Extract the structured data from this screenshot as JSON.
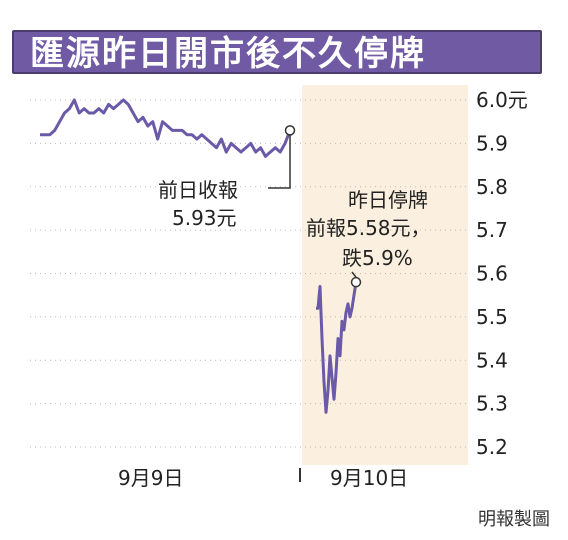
{
  "title": "匯源昨日開市後不久停牌",
  "credit": "明報製圖",
  "annotations": {
    "prev_close_line1": "前日收報",
    "prev_close_line2": "5.93元",
    "halt_line1": "昨日停牌",
    "halt_line2": "前報5.58元，",
    "halt_line3": "跌5.9%"
  },
  "colors": {
    "title_bg": "#6f5aa3",
    "line": "#6b5aa8",
    "highlight_bg": "#fbf0df",
    "grid": "#bbbbbb"
  },
  "chart_data": {
    "type": "line",
    "title": "匯源昨日開市後不久停牌",
    "xlabel": "",
    "ylabel": "",
    "ylim": [
      5.2,
      6.0
    ],
    "y_ticks": [
      6.0,
      5.9,
      5.8,
      5.7,
      5.6,
      5.5,
      5.4,
      5.3,
      5.2
    ],
    "y_tick_labels": [
      "6.0元",
      "5.9",
      "5.8",
      "5.7",
      "5.6",
      "5.5",
      "5.4",
      "5.3",
      "5.2"
    ],
    "grid": true,
    "x_tick_labels": [
      "9月9日",
      "9月10日"
    ],
    "series": [
      {
        "day": "9月9日",
        "values": [
          5.92,
          5.92,
          5.92,
          5.93,
          5.95,
          5.97,
          5.98,
          6.0,
          5.97,
          5.98,
          5.97,
          5.97,
          5.98,
          5.97,
          5.99,
          5.98,
          5.99,
          6.0,
          5.99,
          5.97,
          5.95,
          5.96,
          5.94,
          5.95,
          5.91,
          5.95,
          5.94,
          5.93,
          5.93,
          5.93,
          5.92,
          5.92,
          5.91,
          5.92,
          5.91,
          5.9,
          5.89,
          5.91,
          5.88,
          5.9,
          5.89,
          5.88,
          5.89,
          5.9,
          5.88,
          5.89,
          5.87,
          5.88,
          5.89,
          5.88,
          5.9,
          5.93
        ]
      },
      {
        "day": "9月10日",
        "values": [
          5.52,
          5.52,
          5.57,
          5.45,
          5.35,
          5.28,
          5.33,
          5.41,
          5.36,
          5.31,
          5.37,
          5.45,
          5.41,
          5.49,
          5.47,
          5.51,
          5.53,
          5.5,
          5.52,
          5.55,
          5.58
        ]
      }
    ],
    "markers": [
      {
        "day": "9月9日",
        "value": 5.93,
        "label": "前日收報 5.93元"
      },
      {
        "day": "9月10日",
        "value": 5.58,
        "label": "昨日停牌 前報5.58元，跌5.9%"
      }
    ]
  }
}
